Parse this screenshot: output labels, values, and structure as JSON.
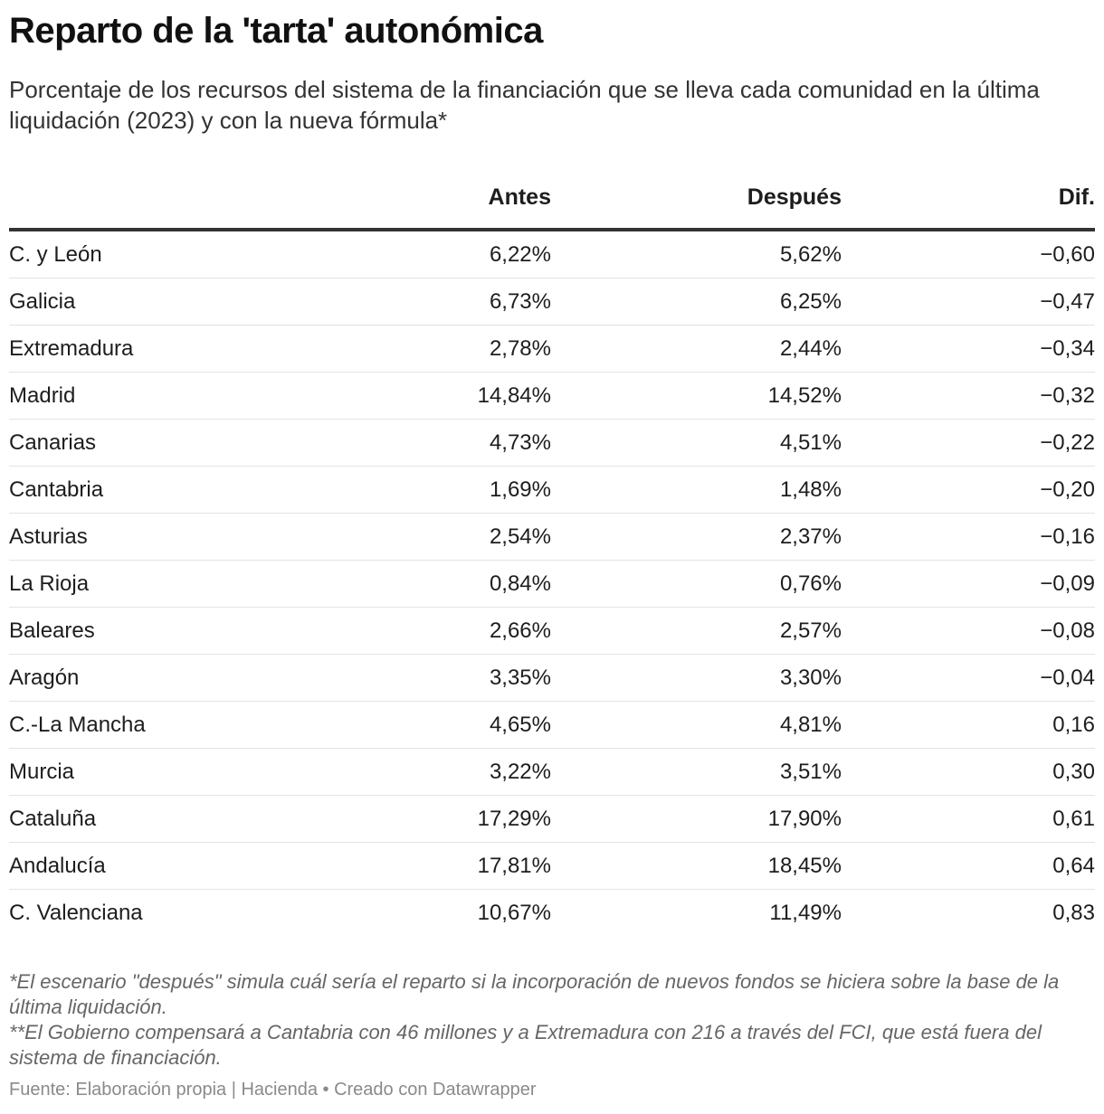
{
  "header": {
    "title": "Reparto de la 'tarta' autonómica",
    "subtitle": "Porcentaje de los recursos del sistema de la financiación que se lleva cada comunidad en la última liquidación (2023) y con la nueva fórmula*"
  },
  "chart_data": {
    "type": "table",
    "columns": [
      "",
      "Antes",
      "Después",
      "Dif."
    ],
    "rows": [
      {
        "name": "C. y León",
        "antes": "6,22%",
        "despues": "5,62%",
        "dif": "−0,60"
      },
      {
        "name": "Galicia",
        "antes": "6,73%",
        "despues": "6,25%",
        "dif": "−0,47"
      },
      {
        "name": "Extremadura",
        "antes": "2,78%",
        "despues": "2,44%",
        "dif": "−0,34"
      },
      {
        "name": "Madrid",
        "antes": "14,84%",
        "despues": "14,52%",
        "dif": "−0,32"
      },
      {
        "name": "Canarias",
        "antes": "4,73%",
        "despues": "4,51%",
        "dif": "−0,22"
      },
      {
        "name": "Cantabria",
        "antes": "1,69%",
        "despues": "1,48%",
        "dif": "−0,20"
      },
      {
        "name": "Asturias",
        "antes": "2,54%",
        "despues": "2,37%",
        "dif": "−0,16"
      },
      {
        "name": "La Rioja",
        "antes": "0,84%",
        "despues": "0,76%",
        "dif": "−0,09"
      },
      {
        "name": "Baleares",
        "antes": "2,66%",
        "despues": "2,57%",
        "dif": "−0,08"
      },
      {
        "name": "Aragón",
        "antes": "3,35%",
        "despues": "3,30%",
        "dif": "−0,04"
      },
      {
        "name": "C.-La Mancha",
        "antes": "4,65%",
        "despues": "4,81%",
        "dif": "0,16"
      },
      {
        "name": "Murcia",
        "antes": "3,22%",
        "despues": "3,51%",
        "dif": "0,30"
      },
      {
        "name": "Cataluña",
        "antes": "17,29%",
        "despues": "17,90%",
        "dif": "0,61"
      },
      {
        "name": "Andalucía",
        "antes": "17,81%",
        "despues": "18,45%",
        "dif": "0,64"
      },
      {
        "name": "C. Valenciana",
        "antes": "10,67%",
        "despues": "11,49%",
        "dif": "0,83"
      }
    ]
  },
  "notes": [
    "*El escenario \"después\" simula cuál sería el reparto si la incorporación de nuevos fondos se hiciera sobre la base de la última liquidación.",
    "**El Gobierno compensará a Cantabria con 46 millones y a Extremadura con 216 a través del FCI, que está fuera del sistema de financiación."
  ],
  "footer": {
    "source": "Fuente: Elaboración propia | Hacienda • Creado con Datawrapper"
  }
}
